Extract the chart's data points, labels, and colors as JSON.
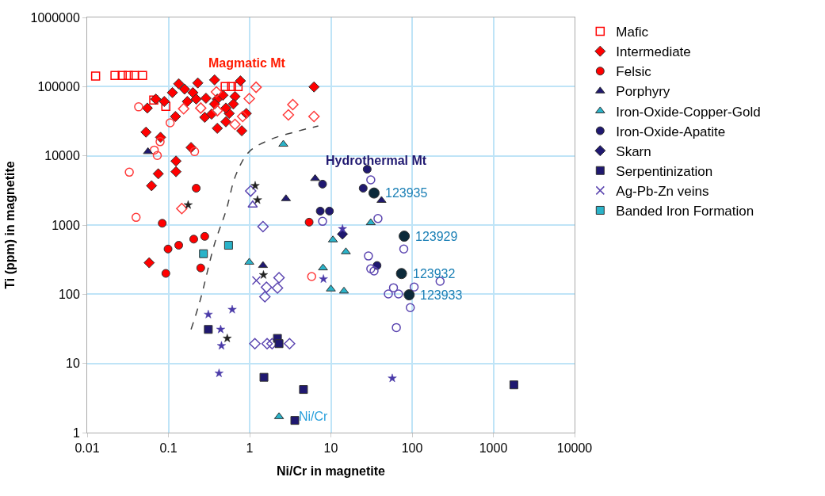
{
  "chart_data": {
    "type": "scatter",
    "xlabel": "Ni/Cr in magnetite",
    "ylabel": "Ti (ppm) in magnetite",
    "log": "xy",
    "xlim": [
      0.01,
      10000
    ],
    "ylim": [
      1,
      1000000
    ],
    "xticks": [
      0.01,
      0.1,
      1,
      10,
      100,
      1000,
      10000
    ],
    "yticks": [
      1,
      10,
      100,
      1000,
      10000,
      100000,
      1000000
    ],
    "grid": true,
    "legend": "right",
    "series": [
      {
        "name": "Mafic",
        "color": "#ff0000",
        "marker": "square-open",
        "x": [
          0.0127,
          0.022,
          0.027,
          0.032,
          0.038,
          0.048,
          0.066,
          0.093,
          0.5,
          0.6,
          0.72
        ],
        "values": [
          142000,
          145000,
          145000,
          145000,
          145000,
          145000,
          64000,
          52000,
          100000,
          100000,
          100000
        ]
      },
      {
        "name": "Intermediate",
        "color": "#ff0000",
        "marker": "diamond",
        "x": [
          0.134,
          0.23,
          0.37,
          0.77,
          0.112,
          0.158,
          0.2,
          0.07,
          0.089,
          0.171,
          0.22,
          0.29,
          0.4,
          0.47,
          0.66,
          0.055,
          0.122,
          0.28,
          0.34,
          0.56,
          0.91,
          0.4,
          0.51,
          0.8,
          0.053,
          0.08,
          0.19,
          0.124,
          0.075,
          0.124,
          0.062,
          6.2,
          0.37,
          0.51,
          0.63,
          0.058
        ],
        "values": [
          110000,
          113000,
          125000,
          121000,
          82000,
          92000,
          82000,
          66000,
          61000,
          61000,
          66000,
          68000,
          66000,
          75000,
          72000,
          49000,
          37000,
          36000,
          40000,
          41000,
          41000,
          25000,
          31000,
          23000,
          22000,
          18500,
          13200,
          8400,
          5500,
          5900,
          3700,
          99000,
          56000,
          49000,
          56000,
          285
        ]
      },
      {
        "color": "#ff3b3b",
        "marker": "diamond-open",
        "x": [
          1.2,
          0.99,
          0.39,
          0.25,
          0.154,
          0.4,
          0.82,
          0.66,
          3.4,
          3.0,
          6.2,
          0.146
        ],
        "values": [
          98000,
          67000,
          84000,
          49000,
          48000,
          45000,
          37000,
          28500,
          55000,
          39000,
          37000,
          1730
        ]
      },
      {
        "name": "Felsic",
        "color": "#ff0000",
        "marker": "circle",
        "x": [
          0.22,
          0.084,
          5.4,
          0.099,
          0.134,
          0.205,
          0.28,
          0.093,
          0.25
        ],
        "values": [
          3400,
          1060,
          1100,
          450,
          510,
          625,
          685,
          200,
          240
        ]
      },
      {
        "color": "#ff3b3b",
        "marker": "circle-open",
        "x": [
          0.043,
          0.105,
          0.079,
          0.067,
          0.073,
          0.21,
          0.033,
          0.04,
          5.8
        ],
        "values": [
          51000,
          30000,
          16000,
          12100,
          10100,
          11500,
          5800,
          1290,
          180
        ]
      },
      {
        "name": "Porphyry",
        "color": "#1f1870",
        "marker": "triangle",
        "x": [
          0.056,
          6.4,
          2.8,
          1.46,
          42
        ],
        "values": [
          11500,
          4700,
          2400,
          260,
          2270
        ]
      },
      {
        "color": "#5b45b0",
        "marker": "triangle-open",
        "x": [
          1.09
        ],
        "values": [
          1950
        ]
      },
      {
        "name": "Iron-Oxide-Copper-Gold",
        "color": "#2ab3c9",
        "marker": "triangle",
        "x": [
          2.6,
          0.99,
          8.0,
          2.3,
          31,
          10.6,
          15.3,
          10.0,
          14.5
        ],
        "values": [
          14700,
          290,
          240,
          1.7,
          1080,
          610,
          410,
          119,
          111
        ]
      },
      {
        "name": "Iron-Oxide-Apatite",
        "color": "#1f1870",
        "marker": "circle",
        "x": [
          28,
          25,
          7.9,
          7.4,
          9.6,
          37
        ],
        "values": [
          6400,
          3400,
          3900,
          1590,
          1590,
          260
        ]
      },
      {
        "color": "#5b45b0",
        "marker": "circle-open",
        "x": [
          31,
          38,
          7.9,
          79,
          29,
          31,
          34,
          59,
          51,
          68,
          106,
          221,
          95,
          64
        ],
        "values": [
          4500,
          1240,
          1130,
          450,
          357,
          233,
          217,
          124,
          101,
          101,
          127,
          154,
          64,
          33
        ]
      },
      {
        "color": "#0c2a3a",
        "marker": "circle",
        "x": [
          34,
          80,
          74,
          92
        ],
        "values": [
          2900,
          690,
          199,
          98
        ]
      },
      {
        "name": "Skarn",
        "color": "#1f1870",
        "marker": "diamond",
        "x": [
          13.9
        ],
        "values": [
          740
        ]
      },
      {
        "color": "#5b45b0",
        "marker": "diamond-open",
        "x": [
          1.03,
          1.46,
          1.61,
          2.2,
          2.3,
          1.54,
          1.16,
          1.64,
          1.89,
          3.1
        ],
        "values": [
          3100,
          950,
          126,
          123,
          173,
          92,
          19.3,
          19.3,
          19.3,
          19.3
        ]
      },
      {
        "name": "Serpentinization",
        "color": "#1f1870",
        "marker": "square",
        "x": [
          0.31,
          2.2,
          2.3,
          1.5,
          4.6,
          3.6,
          1790
        ],
        "values": [
          31,
          23,
          19.3,
          6.3,
          4.2,
          1.5,
          4.9
        ]
      },
      {
        "name": "Ag-Pb-Zn veins",
        "color": "#5b45b0",
        "marker": "cross",
        "x": [
          1.21
        ],
        "values": [
          158
        ]
      },
      {
        "name": "Banded Iron Formation",
        "color": "#2ab3c9",
        "marker": "square",
        "x": [
          0.27,
          0.55
        ],
        "values": [
          385,
          510
        ]
      },
      {
        "color": "#4a3aa8",
        "marker": "star",
        "x": [
          0.31,
          0.61,
          0.44,
          0.45,
          0.42,
          8.1,
          13.9,
          57
        ],
        "values": [
          51,
          60,
          31,
          18,
          7.2,
          166,
          880,
          6.1
        ]
      },
      {
        "color": "#222222",
        "marker": "star",
        "x": [
          1.17,
          1.25,
          0.175,
          1.48,
          0.53
        ],
        "values": [
          3700,
          2300,
          1950,
          190,
          23
        ]
      },
      {
        "type": "line",
        "color": "#444444",
        "line_style": "dashed",
        "marker": "none",
        "x": [
          0.19,
          0.245,
          0.37,
          0.51,
          0.68,
          0.99,
          1.8,
          3.8,
          7.0
        ],
        "values": [
          31,
          80,
          535,
          1590,
          5360,
          11500,
          17200,
          22500,
          27000
        ]
      }
    ],
    "annotations": [
      "Magmatic Mt",
      "Hydrothermal Mt",
      "Ni/Cr",
      {
        "text": "123935",
        "x": 34,
        "y": 2900
      },
      {
        "text": "123929",
        "x": 80,
        "y": 690
      },
      {
        "text": "123932",
        "x": 74,
        "y": 199
      },
      {
        "text": "123933",
        "x": 92,
        "y": 98
      }
    ]
  }
}
